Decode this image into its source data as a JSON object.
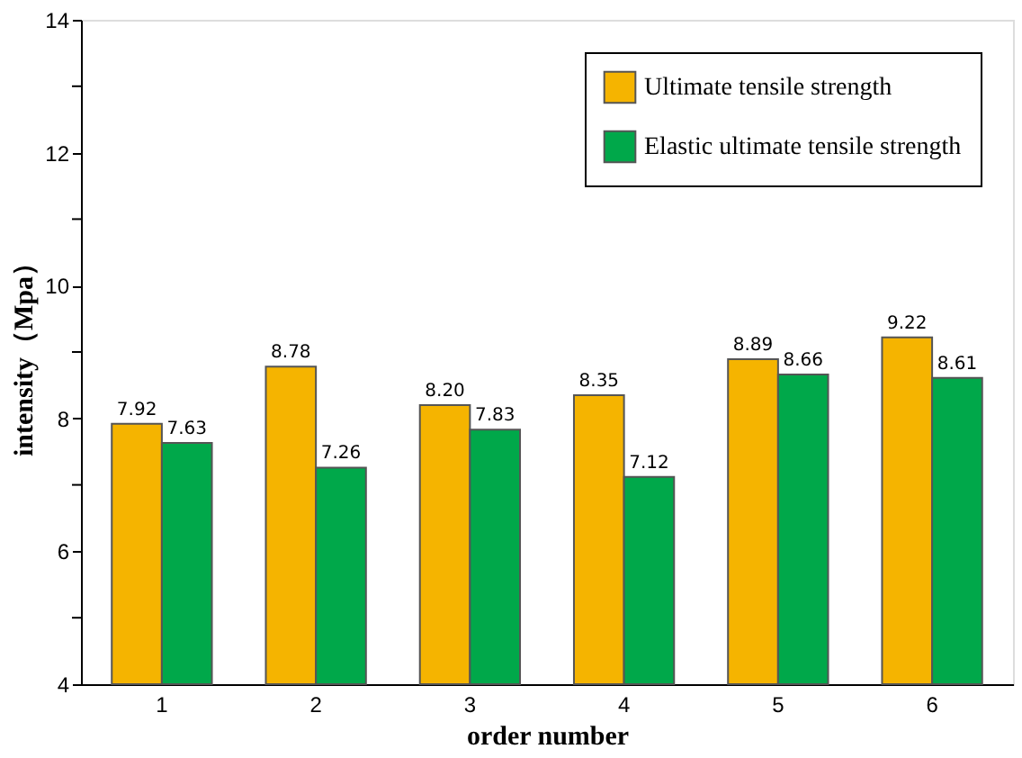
{
  "chart_data": {
    "type": "bar",
    "xlabel": "order number",
    "ylabel": "intensity（Mpa）",
    "categories": [
      "1",
      "2",
      "3",
      "4",
      "5",
      "6"
    ],
    "series": [
      {
        "name": "Ultimate tensile strength",
        "color": "#f5b400",
        "values": [
          7.92,
          8.78,
          8.2,
          8.35,
          8.89,
          9.22
        ],
        "value_labels": [
          "7.92",
          "8.78",
          "8.20",
          "8.35",
          "8.89",
          "9.22"
        ]
      },
      {
        "name": "Elastic ultimate tensile strength",
        "color": "#00a84a",
        "values": [
          7.63,
          7.26,
          7.83,
          7.12,
          8.66,
          8.61
        ],
        "value_labels": [
          "7.63",
          "7.26",
          "7.83",
          "7.12",
          "8.66",
          "8.61"
        ]
      }
    ],
    "ylim": [
      4,
      14
    ],
    "yticks": [
      4,
      {
        "value": 5,
        "label": null
      },
      6,
      {
        "value": 7,
        "label": null
      },
      8,
      {
        "value": 9,
        "label": null
      },
      10,
      {
        "value": 11,
        "label": null
      },
      12,
      {
        "value": 13,
        "label": null
      },
      14
    ],
    "legend": "top right",
    "grid": false
  }
}
